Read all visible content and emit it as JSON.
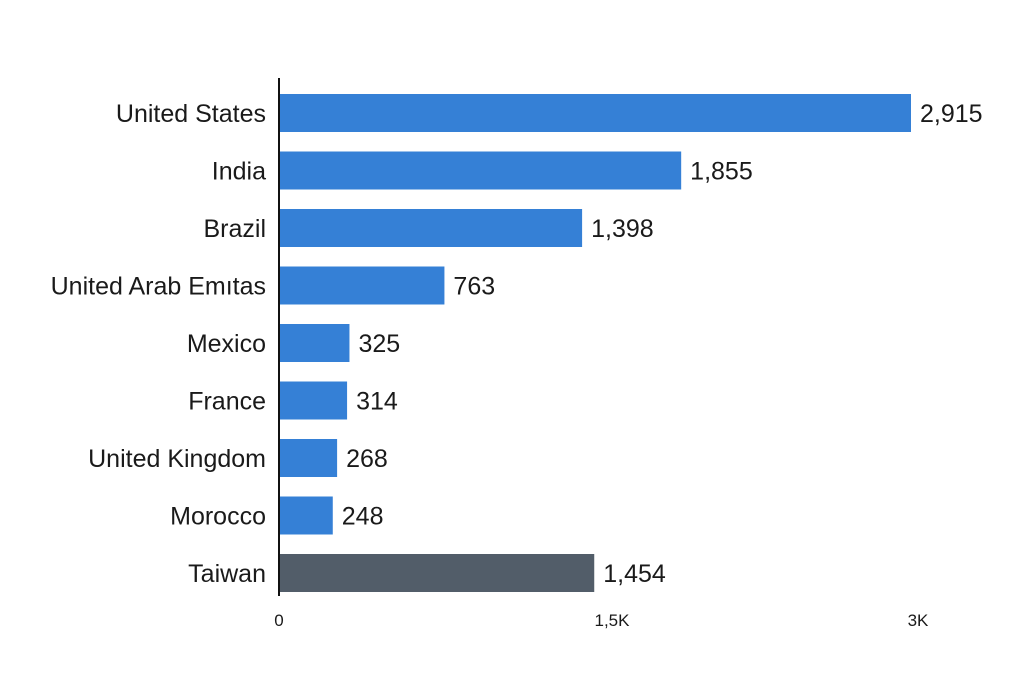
{
  "chart_data": {
    "type": "bar",
    "orientation": "horizontal",
    "categories": [
      "United States",
      "India",
      "Brazil",
      "United Arab Emıtas",
      "Mexico",
      "France",
      "United Kingdom",
      "Morocco",
      "Taiwan"
    ],
    "values": [
      2915,
      1855,
      1398,
      763,
      325,
      314,
      268,
      248,
      1454
    ],
    "value_labels": [
      "2,915",
      "1,855",
      "1,398",
      "763",
      "325",
      "314",
      "268",
      "248",
      "1,454"
    ],
    "bar_colors": [
      "#3580d6",
      "#3580d6",
      "#3580d6",
      "#3580d6",
      "#3580d6",
      "#3580d6",
      "#3580d6",
      "#3580d6",
      "#525d69"
    ],
    "xlim": [
      0,
      3000
    ],
    "x_ticks": [
      0,
      1500,
      3000
    ],
    "x_tick_labels": [
      "0",
      "1,5K",
      "3K"
    ],
    "title": "",
    "xlabel": "",
    "ylabel": "",
    "grid": false,
    "legend": "none"
  }
}
